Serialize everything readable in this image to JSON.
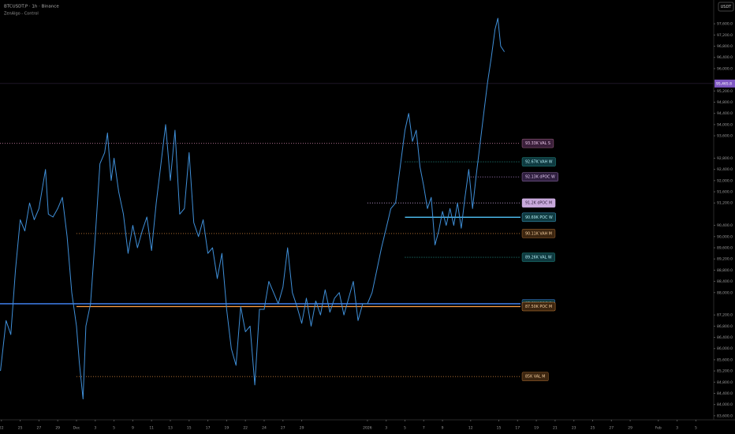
{
  "chart_data": {
    "type": "line",
    "title": "BTCUSDT.P · 1h · Binance",
    "subtitle": "ZenAlgo - Control",
    "currency": "USDT",
    "current_price": {
      "value": 95465.8,
      "label": "95,465.8",
      "color": "#7e57c2"
    },
    "xlim": [
      -8.15,
      67.9
    ],
    "ylim": [
      83230,
      98450
    ],
    "grid": false,
    "xticks": [
      {
        "value": -8,
        "label": "22"
      },
      {
        "value": -6,
        "label": "25"
      },
      {
        "value": -4,
        "label": "27"
      },
      {
        "value": -2,
        "label": "29"
      },
      {
        "value": 0,
        "label": "Dec"
      },
      {
        "value": 2,
        "label": "3"
      },
      {
        "value": 4,
        "label": "5"
      },
      {
        "value": 6,
        "label": "9"
      },
      {
        "value": 8,
        "label": "11"
      },
      {
        "value": 10,
        "label": "13"
      },
      {
        "value": 12,
        "label": "15"
      },
      {
        "value": 14,
        "label": "17"
      },
      {
        "value": 16,
        "label": "19"
      },
      {
        "value": 18,
        "label": "22"
      },
      {
        "value": 20,
        "label": "24"
      },
      {
        "value": 22,
        "label": "27"
      },
      {
        "value": 24,
        "label": "29"
      },
      {
        "value": 31,
        "label": "2026"
      },
      {
        "value": 33,
        "label": "3"
      },
      {
        "value": 35,
        "label": "5"
      },
      {
        "value": 37,
        "label": "7"
      },
      {
        "value": 39,
        "label": "9"
      },
      {
        "value": 42,
        "label": "12"
      },
      {
        "value": 45,
        "label": "15"
      },
      {
        "value": 47,
        "label": "17"
      },
      {
        "value": 49,
        "label": "19"
      },
      {
        "value": 51,
        "label": "21"
      },
      {
        "value": 53,
        "label": "23"
      },
      {
        "value": 55,
        "label": "25"
      },
      {
        "value": 57,
        "label": "27"
      },
      {
        "value": 59,
        "label": "29"
      },
      {
        "value": 62,
        "label": "Feb"
      },
      {
        "value": 64,
        "label": "3"
      },
      {
        "value": 66,
        "label": "5"
      }
    ],
    "yticks": [
      {
        "value": 83600,
        "label": "83,600.0"
      },
      {
        "value": 84000,
        "label": "84,000.0"
      },
      {
        "value": 84400,
        "label": "84,400.0"
      },
      {
        "value": 84800,
        "label": "84,800.0"
      },
      {
        "value": 85200,
        "label": "85,200.0"
      },
      {
        "value": 85600,
        "label": "85,600.0"
      },
      {
        "value": 86000,
        "label": "86,000.0"
      },
      {
        "value": 86400,
        "label": "86,400.0"
      },
      {
        "value": 86800,
        "label": "86,800.0"
      },
      {
        "value": 87200,
        "label": "87,200.0"
      },
      {
        "value": 88000,
        "label": "88,000.0"
      },
      {
        "value": 88400,
        "label": "88,400.0"
      },
      {
        "value": 88800,
        "label": "88,800.0"
      },
      {
        "value": 89200,
        "label": "89,200.0"
      },
      {
        "value": 89600,
        "label": "89,600.0"
      },
      {
        "value": 90000,
        "label": "90,000.0"
      },
      {
        "value": 90400,
        "label": "90,400.0"
      },
      {
        "value": 91200,
        "label": "91,200.0"
      },
      {
        "value": 91600,
        "label": "91,600.0"
      },
      {
        "value": 92000,
        "label": "92,000.0"
      },
      {
        "value": 92400,
        "label": "92,400.0"
      },
      {
        "value": 92800,
        "label": "92,800.0"
      },
      {
        "value": 93600,
        "label": "93,600.0"
      },
      {
        "value": 94000,
        "label": "94,000.0"
      },
      {
        "value": 94400,
        "label": "94,400.0"
      },
      {
        "value": 94800,
        "label": "94,800.0"
      },
      {
        "value": 95200,
        "label": "95,200.0"
      },
      {
        "value": 96000,
        "label": "96,000.0"
      },
      {
        "value": 96400,
        "label": "96,400.0"
      },
      {
        "value": 96800,
        "label": "96,800.0"
      },
      {
        "value": 97200,
        "label": "97,200.0"
      },
      {
        "value": 97600,
        "label": "97,600.0"
      }
    ],
    "series": [
      {
        "name": "BTCUSDT.P",
        "color": "#3f8fd8",
        "x": [
          -8.1,
          -7.5,
          -7,
          -6.5,
          -6,
          -5.5,
          -5,
          -4.5,
          -4,
          -3.3,
          -3,
          -2.5,
          -2,
          -1.5,
          -1,
          -0.5,
          0,
          0.3,
          0.7,
          1,
          1.5,
          2,
          2.5,
          3,
          3.3,
          3.7,
          4,
          4.5,
          5,
          5.5,
          6,
          6.5,
          7,
          7.5,
          8,
          8.5,
          9,
          9.5,
          10,
          10.5,
          11,
          11.5,
          12,
          12.5,
          13,
          13.5,
          14,
          14.5,
          15,
          15.5,
          16,
          16.5,
          17,
          17.5,
          18,
          18.5,
          19,
          19.5,
          20,
          20.5,
          21,
          21.5,
          22,
          22.5,
          23,
          23.5,
          24,
          24.5,
          25,
          25.5,
          26,
          26.5,
          27,
          27.5,
          28,
          28.5,
          29,
          29.5,
          30,
          30.5,
          31,
          31.5,
          32,
          32.5,
          33,
          33.5,
          34,
          34.5,
          35,
          35.4,
          35.8,
          36.2,
          36.6,
          37,
          37.4,
          37.8,
          38.2,
          38.6,
          39,
          39.4,
          39.8,
          40.2,
          40.6,
          41,
          41.4,
          41.8,
          42.2,
          42.6,
          43,
          43.4,
          43.8,
          44.2,
          44.6,
          44.9,
          45.2,
          45.6
        ],
        "values": [
          85200,
          87000,
          86500,
          88800,
          90600,
          90200,
          91200,
          90600,
          91000,
          92400,
          90800,
          90700,
          91000,
          91400,
          90000,
          88000,
          86800,
          85500,
          84200,
          86800,
          87600,
          90000,
          92600,
          93000,
          93700,
          92000,
          92800,
          91600,
          90800,
          89400,
          90400,
          89600,
          90200,
          90700,
          89500,
          91200,
          92600,
          94000,
          92000,
          93800,
          90800,
          91000,
          93000,
          90500,
          90000,
          90600,
          89400,
          89600,
          88500,
          89400,
          87400,
          86000,
          85400,
          87500,
          86600,
          86800,
          84700,
          87400,
          87400,
          88400,
          88000,
          87600,
          88200,
          89600,
          88000,
          87500,
          86900,
          87800,
          86800,
          87700,
          87200,
          88100,
          87300,
          87800,
          88000,
          87200,
          87800,
          88400,
          87000,
          87600,
          87600,
          88000,
          88800,
          89600,
          90300,
          91000,
          91200,
          92500,
          93800,
          94400,
          93400,
          93800,
          92500,
          91800,
          91000,
          91400,
          89700,
          90200,
          90900,
          90400,
          91000,
          90400,
          91200,
          90300,
          91400,
          92400,
          91000,
          92200,
          93300,
          94400,
          95500,
          96400,
          97400,
          97800,
          96800,
          96600
        ]
      }
    ],
    "levels": [
      {
        "label": "93.33K VAL S",
        "value": 93330,
        "start": -8.15,
        "style": "dotted",
        "color": "#c27ba0",
        "text_color": "#e8c6e8",
        "box": "#3a1f3a"
      },
      {
        "label": "92.67K VAH W",
        "value": 92670,
        "start": 35,
        "style": "dotted",
        "color": "#26a69a",
        "text_color": "#b2ebf2",
        "box": "#0f3a40"
      },
      {
        "label": "92.13K dPOC W",
        "value": 92130,
        "start": 42,
        "style": "dotted",
        "color": "#b48ad0",
        "text_color": "#e1c8f0",
        "box": "#2f1f3f"
      },
      {
        "label": "91.2K dPOC M",
        "value": 91200,
        "start": 31,
        "style": "dotted",
        "color": "#c9a8e0",
        "text_color": "#2a1a35",
        "box": "#c8a9dc"
      },
      {
        "label": "90.69K POC W",
        "value": 90690,
        "start": 35,
        "style": "solid",
        "color": "#4fc3f7",
        "text_color": "#b2ebf2",
        "box": "#0f3a40"
      },
      {
        "label": "90.11K VAH M",
        "value": 90110,
        "start": 0,
        "style": "dotted",
        "color": "#c77d3a",
        "text_color": "#f5cfa0",
        "box": "#3d2610"
      },
      {
        "label": "89.26K VAL W",
        "value": 89260,
        "start": 35,
        "style": "dotted",
        "color": "#26a69a",
        "text_color": "#b2ebf2",
        "box": "#0f3a40"
      },
      {
        "label": "87.60K POC Q",
        "value": 87600,
        "start": -8.15,
        "style": "solid",
        "color": "#448aff",
        "text_color": "#b2ebf2",
        "box": "#0f3a40"
      },
      {
        "label": "87.50K POC M",
        "value": 87500,
        "start": 0,
        "style": "solid",
        "color": "#ff9f43",
        "text_color": "#f5cfa0",
        "box": "#3d2610"
      },
      {
        "label": "85K VAL M",
        "value": 85000,
        "start": 0,
        "style": "dotted",
        "color": "#c77d3a",
        "text_color": "#f5cfa0",
        "box": "#3d2610"
      }
    ]
  }
}
